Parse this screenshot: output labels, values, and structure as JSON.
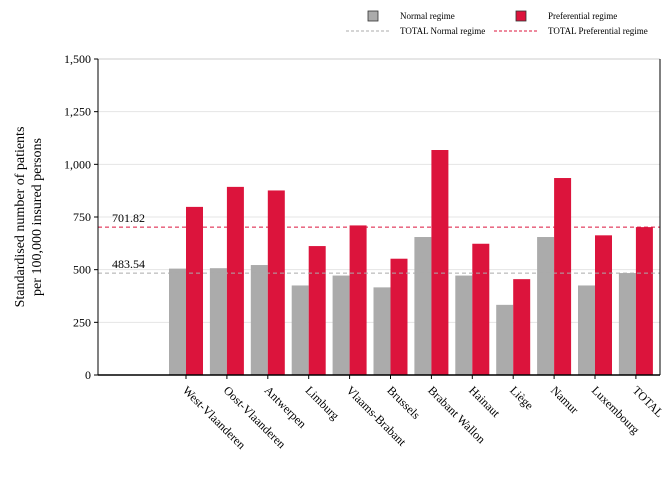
{
  "chart_data": {
    "type": "bar",
    "categories": [
      "West-Vlaanderen",
      "Oost-Vlaanderen",
      "Antwerpen",
      "Limburg",
      "Vlaams-Brabant",
      "Brussels",
      "Brabant Wallon",
      "Hainaut",
      "Liège",
      "Namur",
      "Luxembourg",
      "TOTAL"
    ],
    "series": [
      {
        "name": "Normal regime",
        "color": "#ababab",
        "values": [
          505,
          507,
          522,
          425,
          472,
          416,
          655,
          472,
          333,
          655,
          425,
          484
        ]
      },
      {
        "name": "Preferential regime",
        "color": "#dc143c",
        "values": [
          798,
          893,
          876,
          612,
          710,
          552,
          1068,
          623,
          455,
          935,
          663,
          702
        ]
      }
    ],
    "reference_lines": [
      {
        "name": "TOTAL Normal regime",
        "value": 483.54,
        "label": "483.54",
        "color": "#ababab"
      },
      {
        "name": "TOTAL Preferential regime",
        "value": 701.82,
        "label": "701.82",
        "color": "#dc143c"
      }
    ],
    "yticks": [
      0,
      250,
      500,
      750,
      1000,
      1250,
      1500
    ],
    "ytick_labels": [
      "0",
      "250",
      "500",
      "750",
      "1,000",
      "1,250",
      "1,500"
    ],
    "ylim": [
      0,
      1500
    ],
    "title": "",
    "xlabel": "",
    "ylabel": "Standardised number of patients per 100,000 insured persons",
    "ylabel_lines": [
      "Standardised number of patients",
      "per 100,000 insured persons"
    ],
    "grid": true,
    "legend_position": "top"
  }
}
